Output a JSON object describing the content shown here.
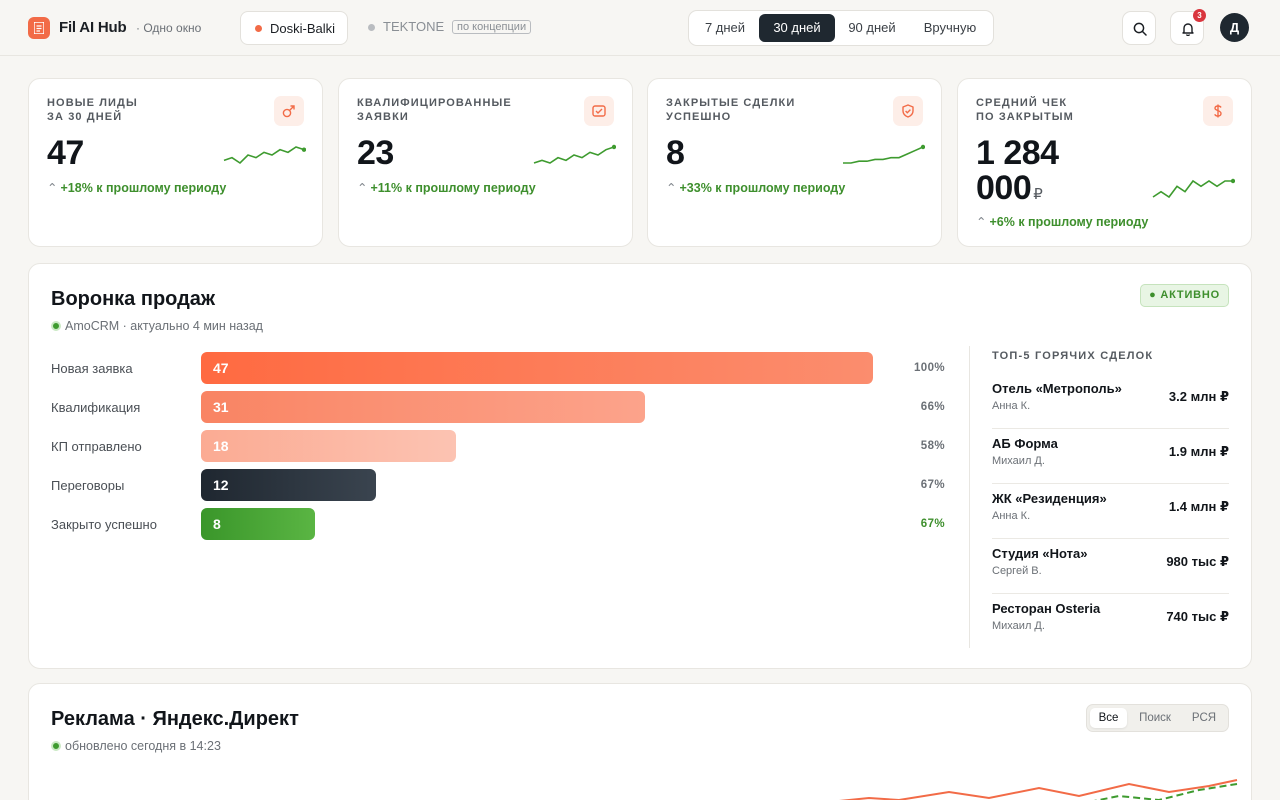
{
  "header": {
    "brand": "Fil AI Hub",
    "brand_sub": "· Одно окно",
    "client_active": "Doski-Balki",
    "client_other": "TEKTONE",
    "client_other_tag": "по концепции",
    "periods": [
      "7 дней",
      "30 дней",
      "90 дней",
      "Вручную"
    ],
    "period_selected": "30 дней",
    "notifications_count": "3",
    "avatar_initial": "Д"
  },
  "kpis": [
    {
      "title_line1": "Новые лиды",
      "title_line2": "за 30 дней",
      "value": "47",
      "delta": "+18% к прошлому периоду",
      "icon": "arrow-up-right-icon",
      "spark": [
        4,
        6,
        2,
        8,
        6,
        10,
        8,
        12,
        10,
        14,
        12
      ]
    },
    {
      "title_line1": "Квалифицированные",
      "title_line2": "заявки",
      "value": "23",
      "delta": "+11% к прошлому периоду",
      "icon": "check-square-icon",
      "spark": [
        5,
        6,
        5,
        7,
        6,
        8,
        7,
        9,
        8,
        10,
        11
      ]
    },
    {
      "title_line1": "Закрытые сделки",
      "title_line2": "успешно",
      "value": "8",
      "delta": "+33% к прошлому периоду",
      "icon": "shield-check-icon",
      "spark": [
        3,
        3,
        4,
        4,
        5,
        5,
        6,
        6,
        8,
        10,
        12
      ]
    },
    {
      "title_line1": "Средний чек",
      "title_line2": "по закрытым",
      "value_line1": "1 284",
      "value_line2": "000",
      "currency": "₽",
      "delta": "+6% к прошлому периоду",
      "icon": "dollar-icon",
      "spark": [
        5,
        6,
        5,
        7,
        6,
        8,
        7,
        8,
        7,
        8,
        8
      ]
    }
  ],
  "funnel": {
    "title": "Воронка продаж",
    "source": "AmoCRM · актуально 4 мин назад",
    "status": "● АКТИВНО",
    "stages": [
      {
        "label": "Новая заявка",
        "value": "47",
        "pct": "100%",
        "fraction": 1.0
      },
      {
        "label": "Квалификация",
        "value": "31",
        "pct": "66%",
        "fraction": 0.66
      },
      {
        "label": "КП отправлено",
        "value": "18",
        "pct": "58%",
        "fraction": 0.38
      },
      {
        "label": "Переговоры",
        "value": "12",
        "pct": "67%",
        "fraction": 0.26
      },
      {
        "label": "Закрыто успешно",
        "value": "8",
        "pct": "67%",
        "fraction": 0.17
      }
    ],
    "colors": [
      "#ff7048",
      "#f98b6c",
      "#fbb29c",
      "#2b333c",
      "#44a02f"
    ],
    "top5_title": "Топ-5 горячих сделок",
    "deals": [
      {
        "name": "Отель «Метрополь»",
        "manager": "Анна К.",
        "sum": "3.2 млн ₽"
      },
      {
        "name": "АБ Форма",
        "manager": "Михаил Д.",
        "sum": "1.9 млн ₽"
      },
      {
        "name": "ЖК «Резиденция»",
        "manager": "Анна К.",
        "sum": "1.4 млн ₽"
      },
      {
        "name": "Студия «Нота»",
        "manager": "Сергей В.",
        "sum": "980 тыс ₽"
      },
      {
        "name": "Ресторан Osteria",
        "manager": "Михаил Д.",
        "sum": "740 тыс ₽"
      }
    ]
  },
  "ads": {
    "title": "Реклама · Яндекс.Директ",
    "updated": "обновлено сегодня в 14:23",
    "tabs": [
      "Все",
      "Поиск",
      "РСЯ"
    ],
    "tab_selected": "Все"
  }
}
